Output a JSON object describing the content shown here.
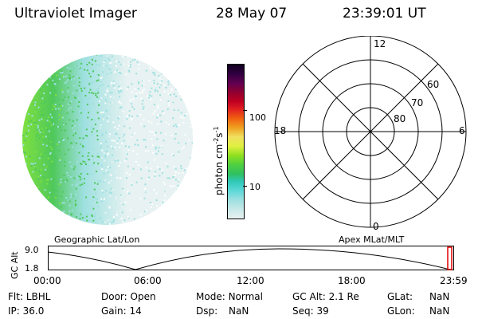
{
  "header": {
    "instrument": "Ultraviolet Imager",
    "date": "28 May 07",
    "time": "23:39:01 UT"
  },
  "colorbar": {
    "label_main": "photon cm",
    "label_sup1": "-2",
    "label_mid": "s",
    "label_sup2": "-1",
    "ticks": [
      "100",
      "10"
    ],
    "colors": [
      "#e8f0f0",
      "#c8e8e8",
      "#9ee0e0",
      "#5ed8d8",
      "#30c8b8",
      "#30c060",
      "#50d040",
      "#90e020",
      "#e0f040",
      "#f0e060",
      "#f0a020",
      "#f06010",
      "#e02020",
      "#c00020",
      "#900030",
      "#600050",
      "#300040",
      "#100020"
    ]
  },
  "globe": {
    "label": "Geographic Lat/Lon",
    "colors": {
      "bright": "#7fe040",
      "mid": "#4fc85a",
      "low": "#9ee0e0",
      "faint": "#e8f2f2"
    }
  },
  "polar": {
    "label": "Apex MLat/MLT",
    "mlt_labels": [
      "12",
      "18",
      "6",
      "0"
    ],
    "lat_labels": [
      "60",
      "70",
      "80"
    ]
  },
  "altitude_strip": {
    "ylabel": "GC Alt",
    "ytick_top": "9.0",
    "ytick_bottom": "1.8",
    "xticks": [
      "00:00",
      "06:00",
      "12:00",
      "18:00",
      "23:59"
    ],
    "marker_color": "#e00000"
  },
  "status": {
    "row1": [
      {
        "label": "Flt:",
        "value": "LBHL"
      },
      {
        "label": "Door:",
        "value": "Open"
      },
      {
        "label": "Mode:",
        "value": "Normal"
      },
      {
        "label": "GC Alt:",
        "value": "2.1 Re"
      },
      {
        "label": "GLat:",
        "value": "NaN"
      }
    ],
    "row2": [
      {
        "label": "IP:",
        "value": "36.0"
      },
      {
        "label": "Gain:",
        "value": "14"
      },
      {
        "label": "Dsp:",
        "value": "NaN"
      },
      {
        "label": "Seq:",
        "value": "39"
      },
      {
        "label": "GLon:",
        "value": "NaN"
      }
    ]
  }
}
